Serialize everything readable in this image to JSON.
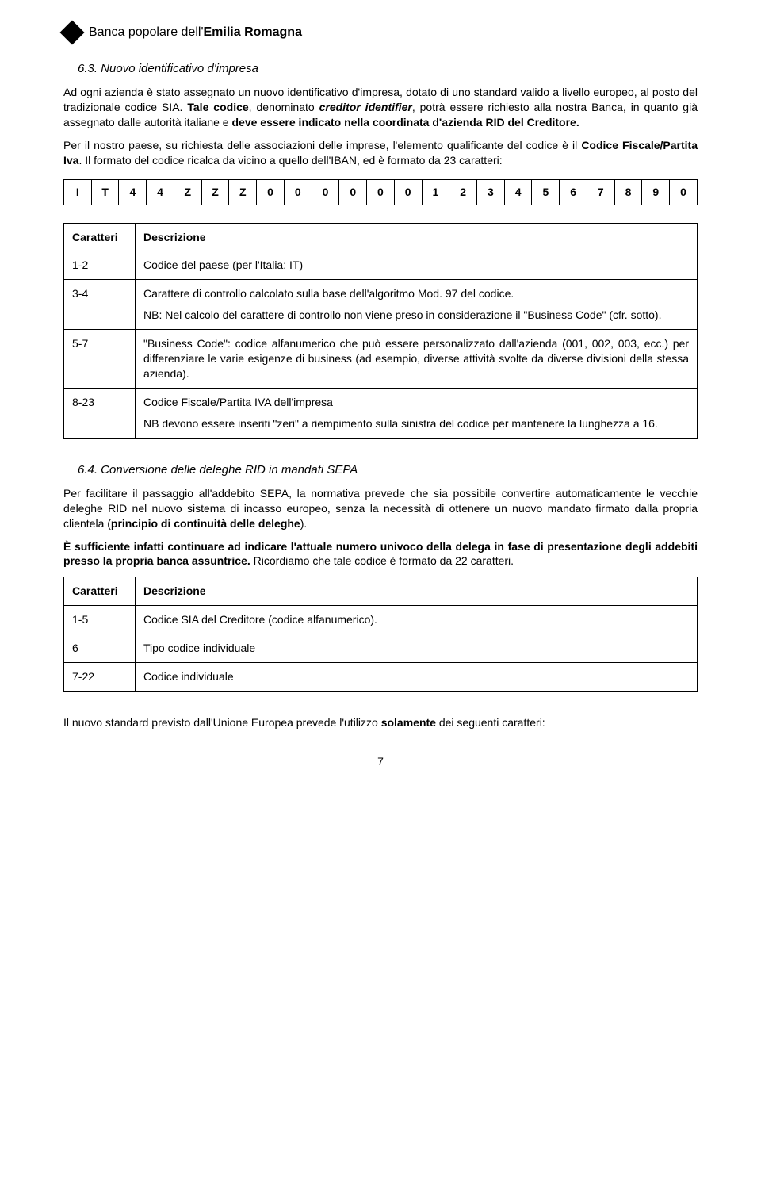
{
  "header": {
    "bank_prefix": "Banca popolare dell'",
    "bank_bold": "Emilia Romagna"
  },
  "section63": {
    "title": "6.3. Nuovo identificativo d'impresa",
    "p1": "Ad ogni azienda è stato assegnato un nuovo identificativo d'impresa, dotato di uno standard valido a livello europeo, al posto del tradizionale codice SIA. ",
    "p1b_prefix": "Tale codice",
    "p1b_mid": ", denominato ",
    "p1b_term": "creditor identifier",
    "p1b_mid2": ", potrà essere richiesto alla nostra Banca, in quanto già assegnato dalle autorità italiane e ",
    "p1b_bold": "deve essere indicato nella coordinata d'azienda RID del Creditore.",
    "p2a": "Per il nostro paese, su richiesta delle associazioni delle imprese, l'elemento qualificante del codice è il ",
    "p2b": "Codice Fiscale/Partita Iva",
    "p2c": ". Il formato del codice ricalca da vicino a quello dell'IBAN, ed è formato da 23 caratteri:"
  },
  "code_cells": [
    "I",
    "T",
    "4",
    "4",
    "Z",
    "Z",
    "Z",
    "0",
    "0",
    "0",
    "0",
    "0",
    "0",
    "1",
    "2",
    "3",
    "4",
    "5",
    "6",
    "7",
    "8",
    "9",
    "0"
  ],
  "table1": {
    "h1": "Caratteri",
    "h2": "Descrizione",
    "rows": [
      {
        "c": "1-2",
        "d": "Codice del paese (per l'Italia: IT)"
      },
      {
        "c": "3-4",
        "d": "Carattere di controllo calcolato sulla base dell'algoritmo Mod. 97 del codice.",
        "d2": "NB: Nel calcolo del carattere di controllo non viene preso in considerazione il \"Business Code\" (cfr. sotto)."
      },
      {
        "c": "5-7",
        "d": "\"Business Code\": codice alfanumerico che può essere personalizzato dall'azienda (001, 002, 003, ecc.) per differenziare le varie esigenze di business (ad esempio, diverse attività svolte da diverse divisioni della stessa azienda)."
      },
      {
        "c": "8-23",
        "d": "Codice Fiscale/Partita IVA dell'impresa",
        "d2": "NB devono essere inseriti \"zeri\" a riempimento sulla sinistra del codice per mantenere la lunghezza a 16."
      }
    ]
  },
  "section64": {
    "title": "6.4. Conversione delle deleghe RID in mandati SEPA",
    "p1a": "Per facilitare il passaggio all'addebito SEPA, la normativa prevede che sia possibile convertire automaticamente le vecchie deleghe RID nel nuovo sistema di incasso europeo, senza la necessità di ottenere un nuovo mandato firmato dalla propria clientela (",
    "p1b": "principio di continuità delle deleghe",
    "p1c": ").",
    "p2a": "È sufficiente infatti continuare ad indicare l'attuale numero univoco della delega in fase di presentazione degli addebiti presso la propria banca assuntrice.",
    "p2b": " Ricordiamo che tale codice è formato da 22 caratteri."
  },
  "table2": {
    "h1": "Caratteri",
    "h2": "Descrizione",
    "rows": [
      {
        "c": "1-5",
        "d": "Codice SIA del Creditore (codice alfanumerico)."
      },
      {
        "c": "6",
        "d": "Tipo codice individuale"
      },
      {
        "c": "7-22",
        "d": "Codice individuale"
      }
    ]
  },
  "footer_p_a": "Il nuovo standard previsto dall'Unione Europea prevede l'utilizzo ",
  "footer_p_b": "solamente",
  "footer_p_c": " dei seguenti caratteri:",
  "page_number": "7"
}
